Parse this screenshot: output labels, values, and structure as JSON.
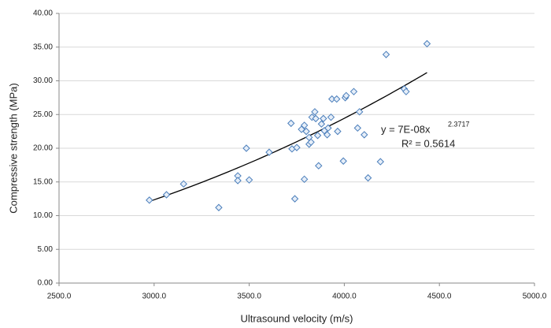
{
  "chart_data": {
    "type": "scatter",
    "x_label": "Ultrasound velocity (m/s)",
    "y_label": "Compressive strength (MPa)",
    "x": [
      2975,
      3065,
      3155,
      3340,
      3440,
      3440,
      3485,
      3500,
      3605,
      3720,
      3725,
      3740,
      3750,
      3790,
      3790,
      3775,
      3800,
      3815,
      3815,
      3825,
      3830,
      3845,
      3850,
      3860,
      3865,
      3880,
      3890,
      3895,
      3910,
      3915,
      3930,
      3935,
      3960,
      3965,
      3995,
      4005,
      4010,
      4050,
      4070,
      4080,
      4105,
      4125,
      4190,
      4220,
      4315,
      4325,
      4435
    ],
    "values": [
      12.3,
      13.1,
      14.7,
      11.2,
      15.9,
      15.2,
      20.0,
      15.3,
      19.4,
      23.7,
      19.9,
      12.5,
      20.1,
      15.4,
      23.4,
      22.8,
      22.5,
      21.6,
      20.6,
      20.9,
      24.6,
      25.4,
      24.4,
      21.9,
      17.4,
      23.6,
      24.4,
      22.6,
      22.0,
      23.0,
      24.6,
      27.3,
      27.3,
      22.5,
      18.1,
      27.5,
      27.8,
      28.4,
      23.0,
      25.4,
      22.0,
      15.6,
      18.0,
      33.9,
      28.8,
      28.4,
      35.5
    ],
    "color": "#4a7ebb",
    "xlim": [
      2500,
      5000
    ],
    "xticks": [
      {
        "value": 2500,
        "label": "2500.0"
      },
      {
        "value": 3000,
        "label": "3000.0"
      },
      {
        "value": 3500,
        "label": "3500.0"
      },
      {
        "value": 4000,
        "label": "4000.0"
      },
      {
        "value": 4500,
        "label": "4500.0"
      },
      {
        "value": 5000,
        "label": "5000.0"
      }
    ],
    "ylim": [
      0,
      40
    ],
    "yticks": [
      {
        "value": 0,
        "label": "0.00"
      },
      {
        "value": 5,
        "label": "5.00"
      },
      {
        "value": 10,
        "label": "10.00"
      },
      {
        "value": 15,
        "label": "15.00"
      },
      {
        "value": 20,
        "label": "20.00"
      },
      {
        "value": 25,
        "label": "25.00"
      },
      {
        "value": 30,
        "label": "30.00"
      },
      {
        "value": 35,
        "label": "35.00"
      },
      {
        "value": 40,
        "label": "40.00"
      }
    ],
    "grid": true,
    "trendline": {
      "coefficient": {
        "value": 7e-08,
        "label": "y = 7E-08x"
      },
      "exponent": 2.3717,
      "r_squared": {
        "value": 0.5614,
        "label": "R² = 0.5614"
      }
    }
  }
}
